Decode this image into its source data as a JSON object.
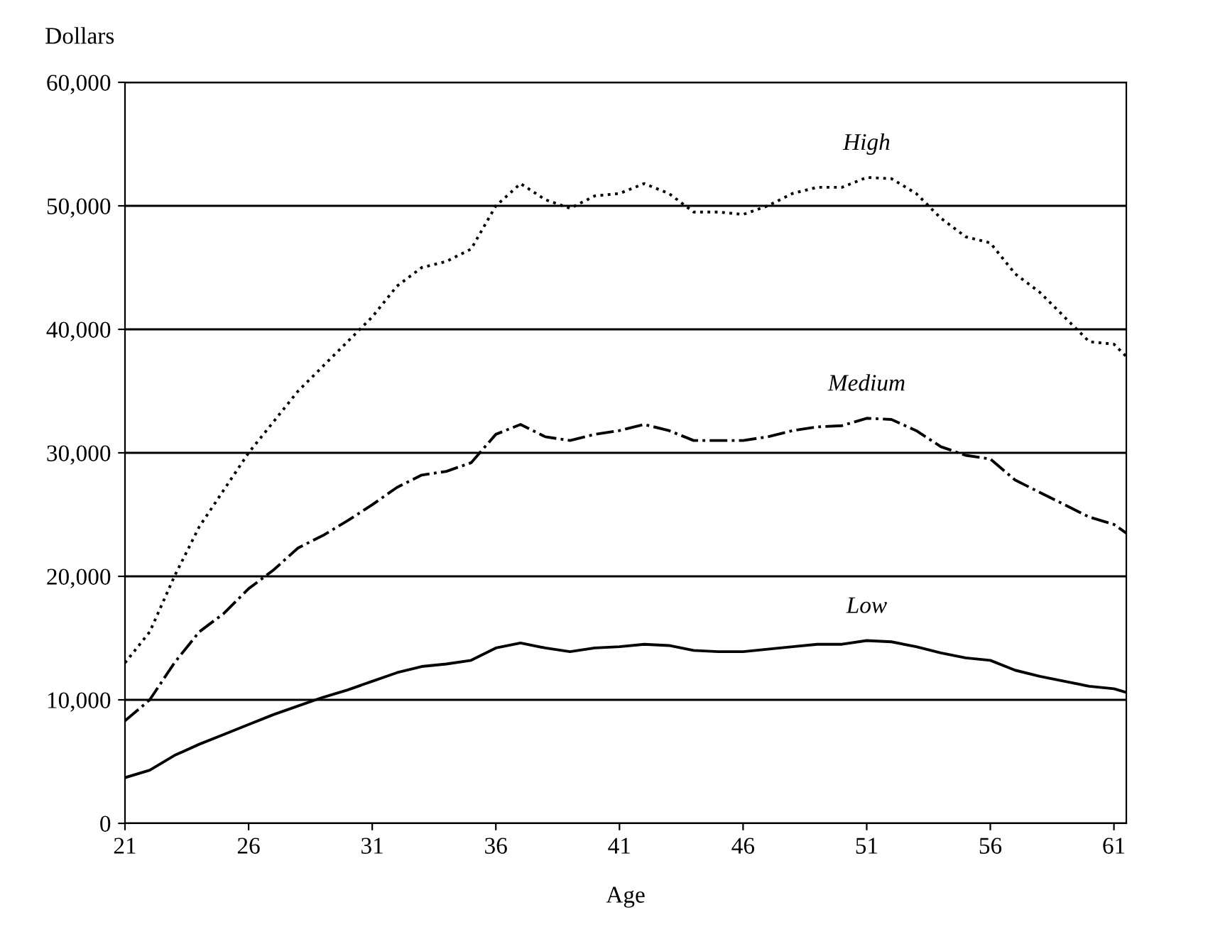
{
  "chart_data": {
    "type": "line",
    "xlabel": "Age",
    "ylabel": "Dollars",
    "x": [
      21,
      22,
      23,
      24,
      25,
      26,
      27,
      28,
      29,
      30,
      31,
      32,
      33,
      34,
      35,
      36,
      37,
      38,
      39,
      40,
      41,
      42,
      43,
      44,
      45,
      46,
      47,
      48,
      49,
      50,
      51,
      52,
      53,
      54,
      55,
      56,
      57,
      58,
      59,
      60,
      61,
      61.5
    ],
    "series": [
      {
        "name": "High",
        "color": "#000000",
        "line_style": "dotted",
        "values": [
          13000,
          15500,
          20000,
          24000,
          27000,
          30000,
          32500,
          35000,
          37000,
          39000,
          41000,
          43500,
          45000,
          45500,
          46500,
          50000,
          51800,
          50500,
          49800,
          50800,
          51000,
          51800,
          51000,
          49500,
          49500,
          49300,
          50000,
          51000,
          51500,
          51500,
          52300,
          52200,
          51000,
          49000,
          47500,
          47000,
          44500,
          43000,
          41000,
          39000,
          38800,
          37800
        ]
      },
      {
        "name": "Medium",
        "color": "#000000",
        "line_style": "dashed",
        "values": [
          8300,
          10000,
          13000,
          15500,
          17000,
          19000,
          20500,
          22300,
          23300,
          24500,
          25800,
          27200,
          28200,
          28500,
          29200,
          31500,
          32300,
          31300,
          31000,
          31500,
          31800,
          32300,
          31800,
          31000,
          31000,
          31000,
          31300,
          31800,
          32100,
          32200,
          32800,
          32700,
          31800,
          30500,
          29800,
          29500,
          27800,
          26800,
          25800,
          24800,
          24200,
          23500
        ]
      },
      {
        "name": "Low",
        "color": "#000000",
        "line_style": "solid",
        "values": [
          3700,
          4300,
          5500,
          6400,
          7200,
          8000,
          8800,
          9500,
          10200,
          10800,
          11500,
          12200,
          12700,
          12900,
          13200,
          14200,
          14600,
          14200,
          13900,
          14200,
          14300,
          14500,
          14400,
          14000,
          13900,
          13900,
          14100,
          14300,
          14500,
          14500,
          14800,
          14700,
          14300,
          13800,
          13400,
          13200,
          12400,
          11900,
          11500,
          11100,
          10900,
          10600
        ]
      }
    ],
    "xlim": [
      21,
      61.5
    ],
    "xticks": [
      21,
      26,
      31,
      36,
      41,
      46,
      51,
      56,
      61
    ],
    "ylim": [
      0,
      60000
    ],
    "yticks": [
      0,
      {
        "value": 10000,
        "label": "10,000"
      },
      {
        "value": 20000,
        "label": "20,000"
      },
      {
        "value": 30000,
        "label": "30,000"
      },
      {
        "value": 40000,
        "label": "40,000"
      },
      {
        "value": 50000,
        "label": "50,000"
      },
      {
        "value": 60000,
        "label": "60,000"
      }
    ],
    "grid": "y",
    "legend": false,
    "marker": "none"
  }
}
